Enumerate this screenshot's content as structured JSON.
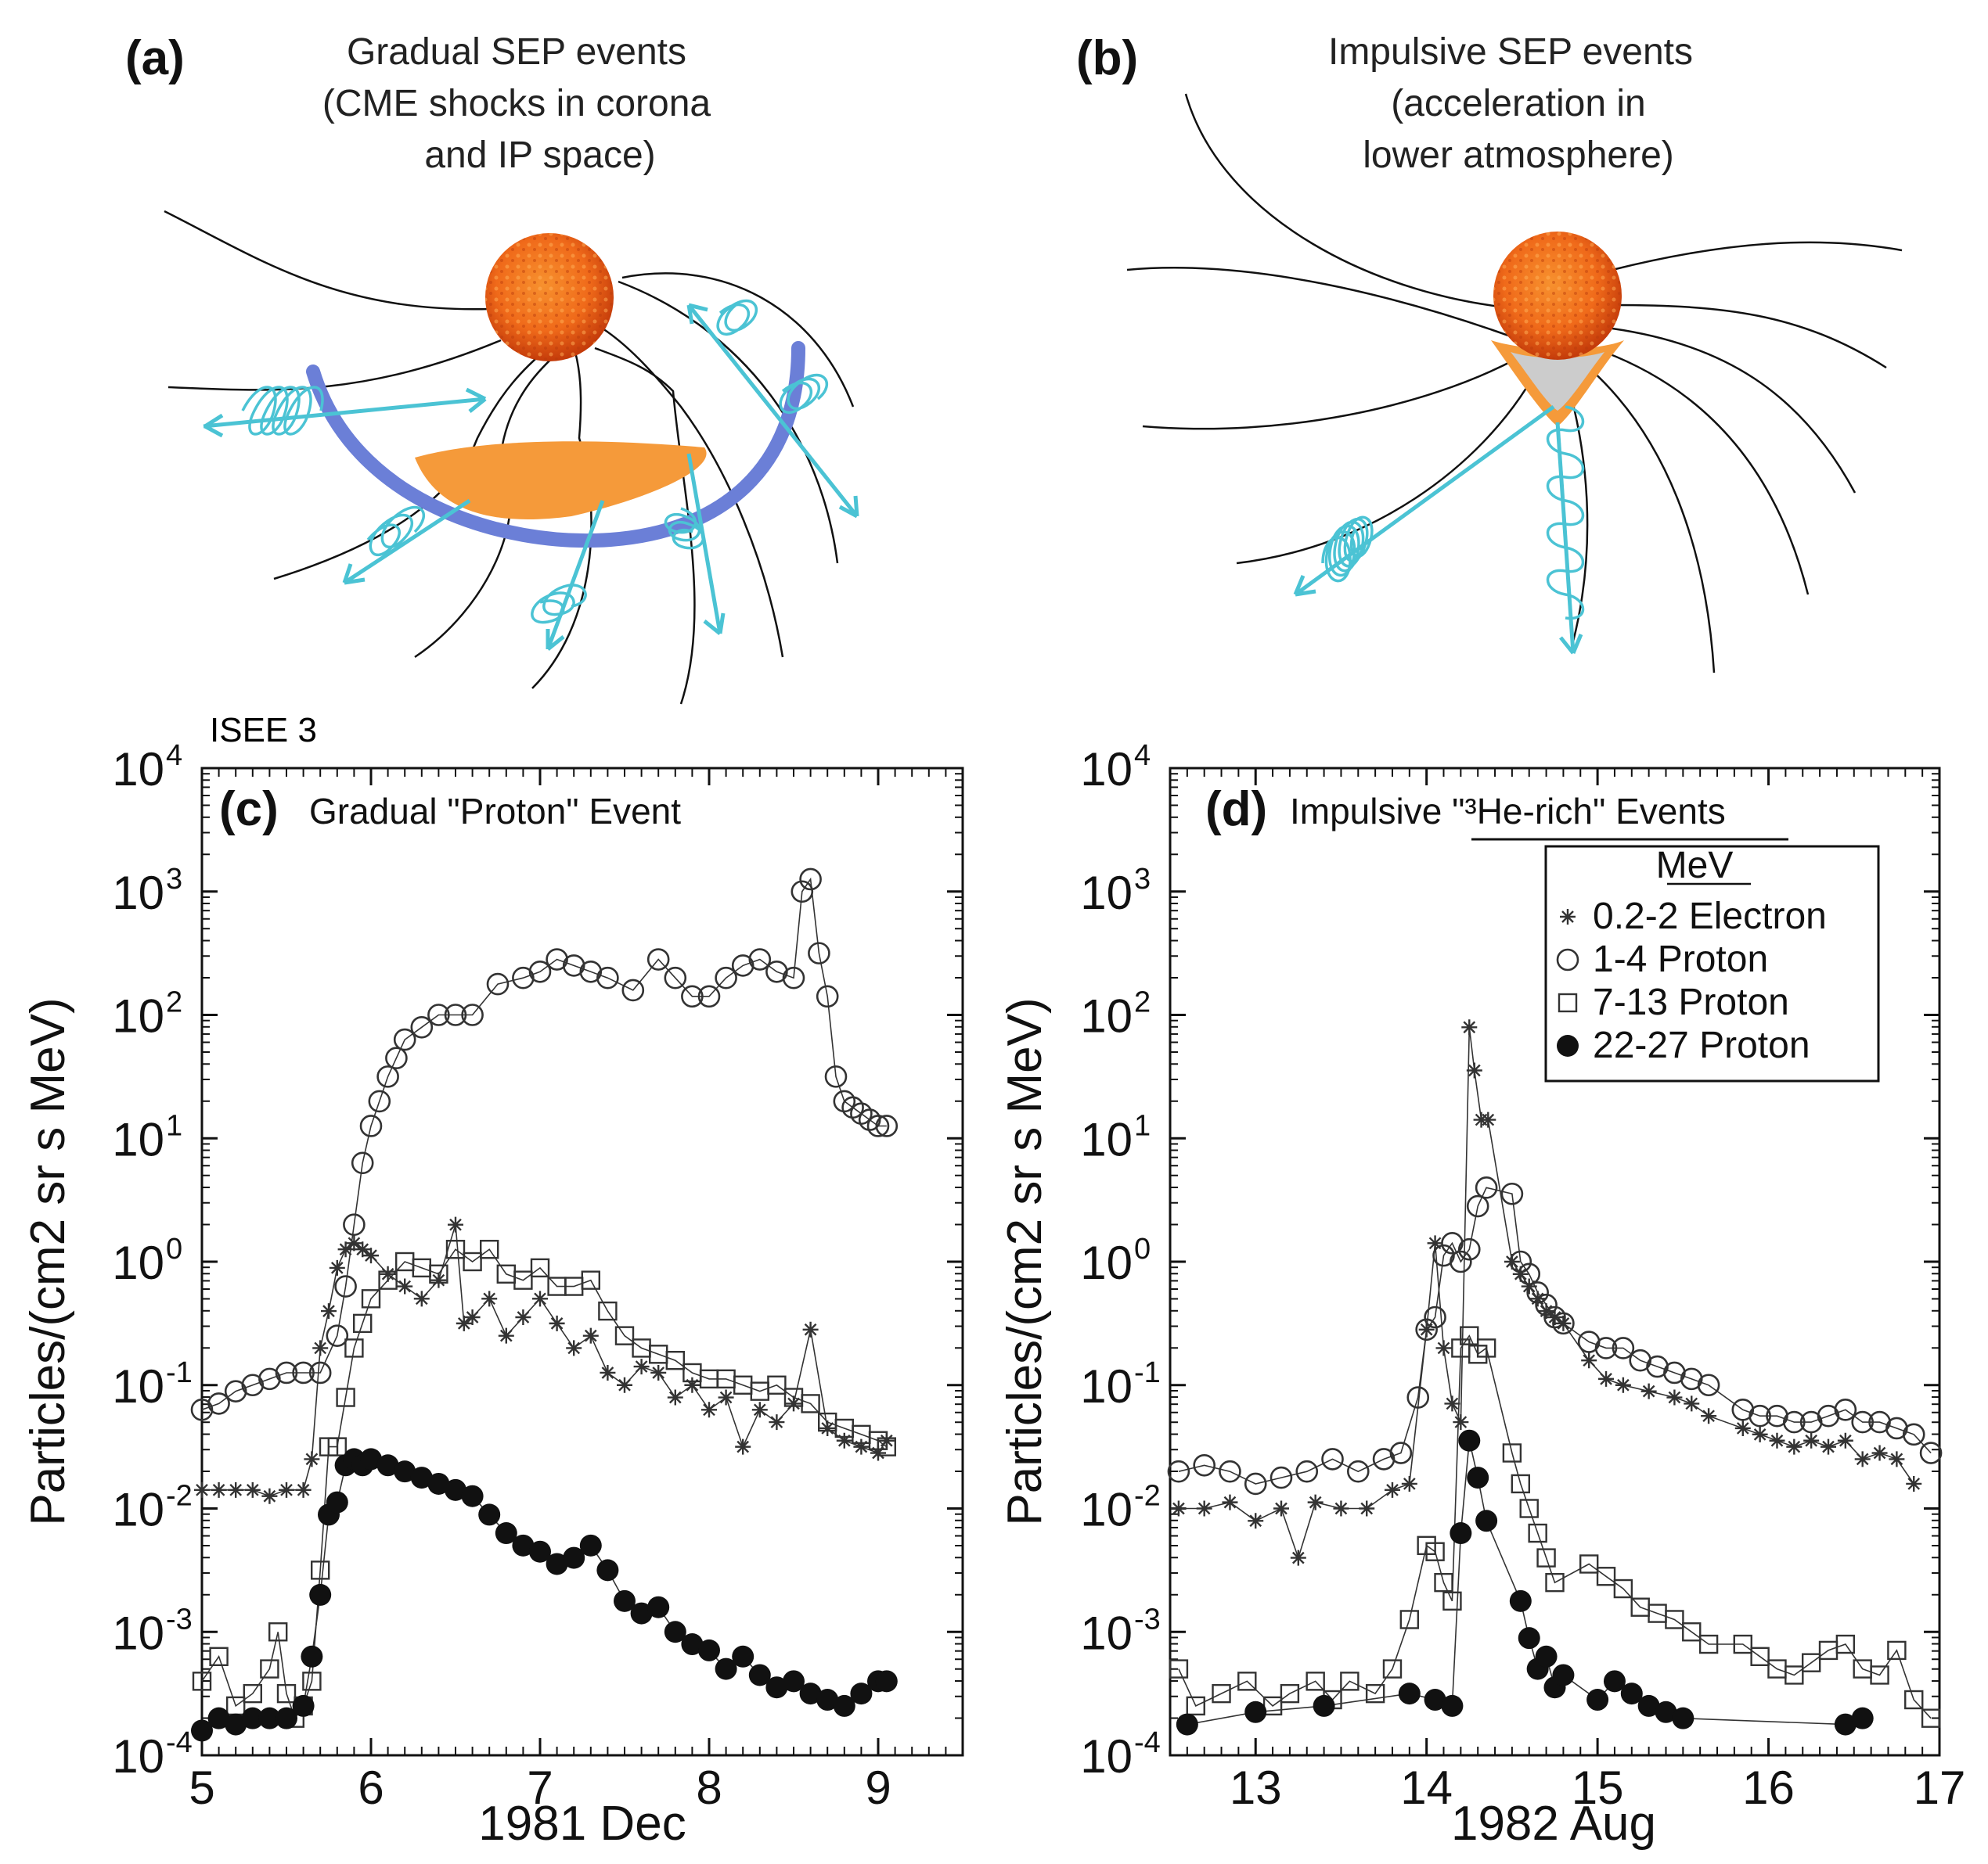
{
  "panel_a": {
    "letter": "(a)",
    "title_lines": [
      "Gradual SEP events",
      "(CME shocks in corona",
      "and IP   space)"
    ]
  },
  "panel_b": {
    "letter": "(b)",
    "title_lines": [
      "Impulsive SEP events",
      "(acceleration in",
      "lower atmosphere)"
    ]
  },
  "colors": {
    "sun_core": "#f06a1a",
    "sun_edge": "#c43b0a",
    "cme_orange": "#f59a3a",
    "shock_blue": "#6b7fd7",
    "spiral_cyan": "#4bc3d4",
    "field_line": "#111111"
  },
  "chart_data": [
    {
      "type": "scatter",
      "panel": "(c)",
      "spacecraft": "ISEE 3",
      "title": "Gradual \"Proton\" Event",
      "xlabel": "1981 Dec",
      "ylabel": "Particles/(cm2 sr s MeV)",
      "xlim": [
        5,
        9.5
      ],
      "ylim_log10": [
        -4,
        4
      ],
      "x_ticks": [
        5,
        6,
        7,
        8,
        9
      ],
      "x_tick_labels": [
        "5",
        "6",
        "7",
        "8",
        "9"
      ],
      "y_ticks_log10": [
        -4,
        -3,
        -2,
        -1,
        0,
        1,
        2,
        3,
        4
      ],
      "y_tick_base": "10",
      "y_tick_exponents": [
        "-4",
        "-3",
        "-2",
        "-1",
        "0",
        "1",
        "2",
        "3",
        "4"
      ],
      "series": [
        {
          "name": "1-4 Proton",
          "marker": "circle-open",
          "x": [
            5.0,
            5.1,
            5.2,
            5.3,
            5.4,
            5.5,
            5.6,
            5.7,
            5.8,
            5.85,
            5.9,
            5.95,
            6.0,
            6.05,
            6.1,
            6.15,
            6.2,
            6.3,
            6.4,
            6.5,
            6.6,
            6.75,
            6.9,
            7.0,
            7.1,
            7.2,
            7.3,
            7.4,
            7.55,
            7.7,
            7.8,
            7.9,
            8.0,
            8.1,
            8.2,
            8.3,
            8.4,
            8.5,
            8.55,
            8.6,
            8.65,
            8.7,
            8.75,
            8.8,
            8.85,
            8.9,
            8.95,
            9.0,
            9.05
          ],
          "log10_y": [
            -1.2,
            -1.15,
            -1.05,
            -1.0,
            -0.95,
            -0.9,
            -0.9,
            -0.9,
            -0.6,
            -0.2,
            0.3,
            0.8,
            1.1,
            1.3,
            1.5,
            1.65,
            1.8,
            1.9,
            2.0,
            2.0,
            2.0,
            2.25,
            2.3,
            2.35,
            2.45,
            2.4,
            2.35,
            2.3,
            2.2,
            2.45,
            2.3,
            2.15,
            2.15,
            2.3,
            2.4,
            2.45,
            2.35,
            2.3,
            3.0,
            3.1,
            2.5,
            2.15,
            1.5,
            1.3,
            1.25,
            1.2,
            1.15,
            1.1,
            1.1
          ]
        },
        {
          "name": "0.2-2 Electron",
          "marker": "asterisk",
          "x": [
            5.0,
            5.1,
            5.2,
            5.3,
            5.4,
            5.5,
            5.6,
            5.65,
            5.7,
            5.75,
            5.8,
            5.85,
            5.9,
            5.95,
            6.0,
            6.1,
            6.2,
            6.3,
            6.4,
            6.5,
            6.55,
            6.6,
            6.7,
            6.8,
            6.9,
            7.0,
            7.1,
            7.2,
            7.3,
            7.4,
            7.5,
            7.6,
            7.7,
            7.8,
            7.9,
            8.0,
            8.1,
            8.2,
            8.3,
            8.4,
            8.5,
            8.6,
            8.7,
            8.8,
            8.9,
            9.0,
            9.05
          ],
          "log10_y": [
            -1.85,
            -1.85,
            -1.85,
            -1.85,
            -1.9,
            -1.85,
            -1.85,
            -1.6,
            -0.7,
            -0.4,
            -0.05,
            0.1,
            0.15,
            0.1,
            0.05,
            -0.1,
            -0.2,
            -0.3,
            -0.15,
            0.3,
            -0.5,
            -0.45,
            -0.3,
            -0.6,
            -0.45,
            -0.3,
            -0.5,
            -0.7,
            -0.6,
            -0.9,
            -1.0,
            -0.85,
            -0.9,
            -1.1,
            -1.0,
            -1.2,
            -1.1,
            -1.5,
            -1.2,
            -1.3,
            -1.15,
            -0.55,
            -1.35,
            -1.45,
            -1.5,
            -1.55,
            -1.45
          ]
        },
        {
          "name": "7-13 Proton",
          "marker": "square-open",
          "x": [
            5.0,
            5.1,
            5.2,
            5.3,
            5.4,
            5.45,
            5.5,
            5.55,
            5.6,
            5.65,
            5.7,
            5.75,
            5.8,
            5.85,
            5.9,
            5.95,
            6.0,
            6.1,
            6.2,
            6.3,
            6.4,
            6.5,
            6.6,
            6.7,
            6.8,
            6.9,
            7.0,
            7.1,
            7.2,
            7.3,
            7.4,
            7.5,
            7.6,
            7.7,
            7.8,
            7.9,
            8.0,
            8.1,
            8.2,
            8.3,
            8.4,
            8.5,
            8.6,
            8.7,
            8.8,
            8.9,
            9.0,
            9.05
          ],
          "log10_y": [
            -3.4,
            -3.2,
            -3.6,
            -3.5,
            -3.3,
            -3.0,
            -3.5,
            -3.7,
            -3.6,
            -3.4,
            -2.5,
            -1.5,
            -1.5,
            -1.1,
            -0.7,
            -0.5,
            -0.3,
            -0.15,
            0.0,
            -0.05,
            -0.1,
            0.1,
            0.0,
            0.1,
            -0.1,
            -0.15,
            -0.05,
            -0.2,
            -0.2,
            -0.15,
            -0.4,
            -0.6,
            -0.7,
            -0.75,
            -0.8,
            -0.9,
            -0.95,
            -0.95,
            -1.0,
            -1.05,
            -1.0,
            -1.1,
            -1.15,
            -1.3,
            -1.35,
            -1.4,
            -1.45,
            -1.5
          ]
        },
        {
          "name": "22-27 Proton",
          "marker": "circle-filled",
          "x": [
            5.0,
            5.1,
            5.2,
            5.3,
            5.4,
            5.5,
            5.6,
            5.65,
            5.7,
            5.75,
            5.8,
            5.85,
            5.9,
            5.95,
            6.0,
            6.1,
            6.2,
            6.3,
            6.4,
            6.5,
            6.6,
            6.7,
            6.8,
            6.9,
            7.0,
            7.1,
            7.2,
            7.3,
            7.4,
            7.5,
            7.6,
            7.7,
            7.8,
            7.9,
            8.0,
            8.1,
            8.2,
            8.3,
            8.4,
            8.5,
            8.6,
            8.7,
            8.8,
            8.9,
            9.0,
            9.05
          ],
          "log10_y": [
            -3.8,
            -3.7,
            -3.75,
            -3.7,
            -3.7,
            -3.7,
            -3.6,
            -3.2,
            -2.7,
            -2.05,
            -1.95,
            -1.65,
            -1.6,
            -1.65,
            -1.6,
            -1.65,
            -1.7,
            -1.75,
            -1.8,
            -1.85,
            -1.9,
            -2.05,
            -2.2,
            -2.3,
            -2.35,
            -2.45,
            -2.4,
            -2.3,
            -2.5,
            -2.75,
            -2.85,
            -2.8,
            -3.0,
            -3.1,
            -3.15,
            -3.3,
            -3.2,
            -3.35,
            -3.45,
            -3.4,
            -3.5,
            -3.55,
            -3.6,
            -3.5,
            -3.4,
            -3.4
          ]
        }
      ]
    },
    {
      "type": "scatter",
      "panel": "(d)",
      "title": "Impulsive \"³He-rich\" Events",
      "xlabel": "1982 Aug",
      "ylabel": "Particles/(cm2 sr s MeV)",
      "xlim": [
        12.5,
        17
      ],
      "ylim_log10": [
        -4,
        4
      ],
      "x_ticks": [
        13,
        14,
        15,
        16,
        17
      ],
      "x_tick_labels": [
        "13",
        "14",
        "15",
        "16",
        "17"
      ],
      "y_ticks_log10": [
        -4,
        -3,
        -2,
        -1,
        0,
        1,
        2,
        3,
        4
      ],
      "y_tick_base": "10",
      "y_tick_exponents": [
        "-4",
        "-3",
        "-2",
        "-1",
        "0",
        "1",
        "2",
        "3",
        "4"
      ],
      "legend": {
        "title": "MeV",
        "entries": [
          "0.2-2 Electron",
          "1-4 Proton",
          "7-13 Proton",
          "22-27 Proton"
        ],
        "placement": "top-right"
      },
      "series": [
        {
          "name": "1-4 Proton",
          "marker": "circle-open",
          "x": [
            12.55,
            12.7,
            12.85,
            13.0,
            13.15,
            13.3,
            13.45,
            13.6,
            13.75,
            13.85,
            13.95,
            14.0,
            14.05,
            14.1,
            14.15,
            14.2,
            14.25,
            14.3,
            14.35,
            14.5,
            14.55,
            14.6,
            14.65,
            14.7,
            14.75,
            14.8,
            14.95,
            15.05,
            15.15,
            15.25,
            15.35,
            15.45,
            15.55,
            15.65,
            15.85,
            15.95,
            16.05,
            16.15,
            16.25,
            16.35,
            16.45,
            16.55,
            16.65,
            16.75,
            16.85,
            16.95
          ],
          "log10_y": [
            -1.7,
            -1.65,
            -1.7,
            -1.8,
            -1.75,
            -1.7,
            -1.6,
            -1.7,
            -1.6,
            -1.55,
            -1.1,
            -0.55,
            -0.45,
            0.05,
            0.15,
            0.0,
            0.1,
            0.45,
            0.6,
            0.55,
            0.0,
            -0.1,
            -0.25,
            -0.35,
            -0.45,
            -0.5,
            -0.65,
            -0.7,
            -0.7,
            -0.8,
            -0.85,
            -0.9,
            -0.95,
            -1.0,
            -1.2,
            -1.25,
            -1.25,
            -1.3,
            -1.3,
            -1.25,
            -1.2,
            -1.3,
            -1.3,
            -1.35,
            -1.4,
            -1.55
          ]
        },
        {
          "name": "0.2-2 Electron",
          "marker": "asterisk",
          "x": [
            12.55,
            12.7,
            12.85,
            13.0,
            13.15,
            13.25,
            13.35,
            13.5,
            13.65,
            13.8,
            13.9,
            14.0,
            14.05,
            14.1,
            14.15,
            14.2,
            14.25,
            14.28,
            14.32,
            14.36,
            14.5,
            14.55,
            14.6,
            14.65,
            14.7,
            14.75,
            14.8,
            14.95,
            15.05,
            15.15,
            15.3,
            15.45,
            15.55,
            15.65,
            15.85,
            15.95,
            16.05,
            16.15,
            16.25,
            16.35,
            16.45,
            16.55,
            16.65,
            16.75,
            16.85
          ],
          "log10_y": [
            -2.0,
            -2.0,
            -1.95,
            -2.1,
            -2.0,
            -2.4,
            -1.95,
            -2.0,
            -2.0,
            -1.85,
            -1.8,
            -0.55,
            0.15,
            -0.7,
            -1.15,
            -1.3,
            1.9,
            1.55,
            1.15,
            1.15,
            0.0,
            -0.1,
            -0.2,
            -0.3,
            -0.4,
            -0.45,
            -0.5,
            -0.8,
            -0.95,
            -1.0,
            -1.05,
            -1.1,
            -1.15,
            -1.25,
            -1.35,
            -1.4,
            -1.45,
            -1.5,
            -1.45,
            -1.5,
            -1.45,
            -1.6,
            -1.55,
            -1.6,
            -1.8
          ]
        },
        {
          "name": "7-13 Proton",
          "marker": "square-open",
          "x": [
            12.55,
            12.65,
            12.8,
            12.95,
            13.1,
            13.2,
            13.35,
            13.45,
            13.55,
            13.7,
            13.8,
            13.9,
            14.0,
            14.05,
            14.1,
            14.15,
            14.2,
            14.25,
            14.3,
            14.35,
            14.5,
            14.55,
            14.6,
            14.65,
            14.7,
            14.75,
            14.95,
            15.05,
            15.15,
            15.25,
            15.35,
            15.45,
            15.55,
            15.65,
            15.85,
            15.95,
            16.05,
            16.15,
            16.25,
            16.35,
            16.45,
            16.55,
            16.65,
            16.75,
            16.85,
            16.95
          ],
          "log10_y": [
            -3.3,
            -3.6,
            -3.5,
            -3.4,
            -3.6,
            -3.5,
            -3.4,
            -3.55,
            -3.4,
            -3.5,
            -3.3,
            -2.9,
            -2.3,
            -2.35,
            -2.6,
            -2.75,
            -0.7,
            -0.6,
            -0.75,
            -0.7,
            -1.55,
            -1.8,
            -2.0,
            -2.2,
            -2.4,
            -2.6,
            -2.45,
            -2.55,
            -2.65,
            -2.8,
            -2.85,
            -2.9,
            -3.0,
            -3.1,
            -3.1,
            -3.2,
            -3.3,
            -3.35,
            -3.25,
            -3.15,
            -3.1,
            -3.3,
            -3.35,
            -3.15,
            -3.55,
            -3.7
          ]
        },
        {
          "name": "22-27 Proton",
          "marker": "circle-filled",
          "x": [
            12.6,
            13.0,
            13.4,
            13.9,
            14.05,
            14.15,
            14.2,
            14.25,
            14.3,
            14.35,
            14.55,
            14.6,
            14.65,
            14.7,
            14.75,
            14.8,
            15.0,
            15.1,
            15.2,
            15.3,
            15.4,
            15.5,
            16.45,
            16.55
          ],
          "log10_y": [
            -3.75,
            -3.65,
            -3.6,
            -3.5,
            -3.55,
            -3.6,
            -2.2,
            -1.45,
            -1.75,
            -2.1,
            -2.75,
            -3.05,
            -3.3,
            -3.2,
            -3.45,
            -3.35,
            -3.55,
            -3.4,
            -3.5,
            -3.6,
            -3.65,
            -3.7,
            -3.75,
            -3.7
          ]
        }
      ]
    }
  ]
}
